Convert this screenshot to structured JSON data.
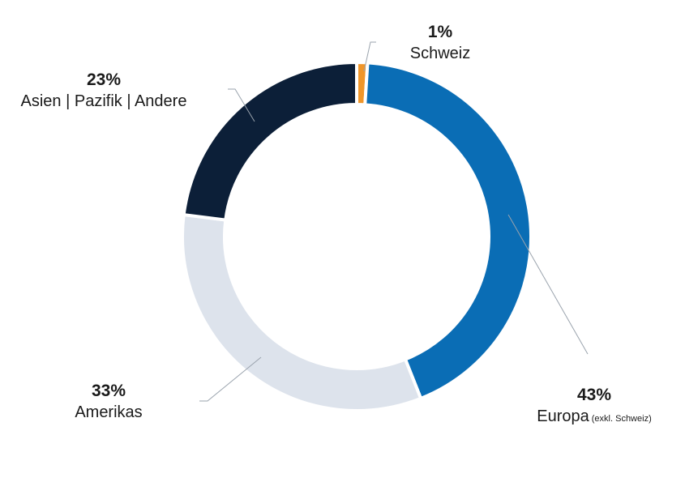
{
  "chart_data": {
    "type": "pie",
    "donut": true,
    "start": "top, clockwise",
    "slices": [
      {
        "label": "Schweiz",
        "value": 1,
        "value_label": "1%",
        "color": "#f0962a"
      },
      {
        "label": "Europa",
        "note": "(exkl. Schweiz)",
        "value": 43,
        "value_label": "43%",
        "color": "#0a6db5"
      },
      {
        "label": "Amerikas",
        "value": 33,
        "value_label": "33%",
        "color": "#dde3ec"
      },
      {
        "label": "Asien | Pazifik | Andere",
        "value": 23,
        "value_label": "23%",
        "color": "#0c1f38"
      }
    ],
    "legend": "none (labels beside slices)"
  }
}
